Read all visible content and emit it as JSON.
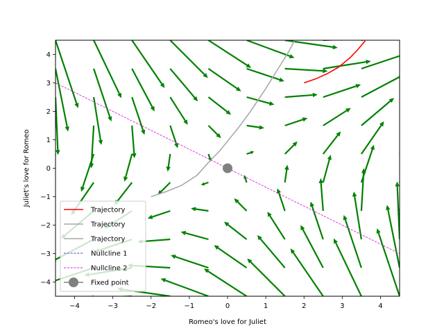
{
  "chart_data": {
    "type": "quiver",
    "title": "",
    "xlabel": "Romeo's love for Juliet",
    "ylabel": "Juliet's love for Romeo",
    "xlim": [
      -4.5,
      4.5
    ],
    "ylim": [
      -4.5,
      4.5
    ],
    "xticks": [
      -4,
      -3,
      -2,
      -1,
      0,
      1,
      2,
      3,
      4
    ],
    "yticks": [
      -4,
      -3,
      -2,
      -1,
      0,
      1,
      2,
      3,
      4
    ],
    "xtick_labels": [
      "−4",
      "−3",
      "−2",
      "−1",
      "0",
      "1",
      "2",
      "3",
      "4"
    ],
    "ytick_labels": [
      "−4",
      "−3",
      "−2",
      "−1",
      "0",
      "1",
      "2",
      "3",
      "4"
    ],
    "grid": false,
    "legend_position": "lower-left",
    "vector_field": {
      "grid_x": [
        -4.5,
        -3.5,
        -2.5,
        -1.5,
        -0.5,
        0.5,
        1.5,
        2.5,
        3.5,
        4.5
      ],
      "grid_y": [
        -4.5,
        -3.5,
        -2.5,
        -1.5,
        -0.5,
        0.5,
        1.5,
        2.5,
        3.5,
        4.5
      ],
      "dx_formula": "0.5*x + y",
      "dy_formula": "x - 0.5*y",
      "arrow_color": "#008000"
    },
    "series": [
      {
        "name": "Trajectory",
        "kind": "line",
        "color": "#ff0000",
        "x": [
          2.0,
          2.3,
          2.6,
          2.9,
          3.2,
          3.4,
          3.6
        ],
        "y": [
          3.0,
          3.14,
          3.32,
          3.55,
          3.88,
          4.16,
          4.48
        ]
      },
      {
        "name": "Trajectory",
        "kind": "line",
        "color": "#a9a9a9",
        "x": [
          -2.0,
          -1.6,
          -1.2,
          -0.8,
          -0.5,
          -0.2,
          0.0,
          0.3,
          0.6,
          1.0,
          1.3,
          1.6,
          1.75
        ],
        "y": [
          -1.0,
          -0.82,
          -0.6,
          -0.25,
          0.2,
          0.62,
          0.95,
          1.45,
          2.0,
          2.8,
          3.45,
          4.1,
          4.48
        ]
      },
      {
        "name": "Trajectory",
        "kind": "line",
        "color": "#a9a9a9",
        "x": [],
        "y": []
      },
      {
        "name": "Nullcline 1",
        "kind": "dashed",
        "color": "#4f4fd9",
        "x": [],
        "y": []
      },
      {
        "name": "Nullcline 2",
        "kind": "dashed",
        "color": "#e020e0",
        "x": [
          -4.5,
          4.5
        ],
        "y": [
          3.0,
          -3.0
        ]
      },
      {
        "name": "Fixed point",
        "kind": "marker",
        "color": "#808080",
        "x": [
          0
        ],
        "y": [
          0
        ]
      }
    ]
  }
}
